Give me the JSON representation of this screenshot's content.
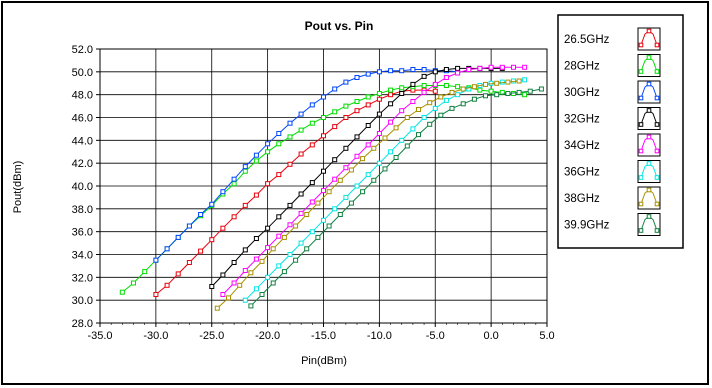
{
  "chart_data": {
    "type": "line",
    "title": "Pout vs. Pin",
    "xlabel": "Pin(dBm)",
    "ylabel": "Pout(dBm)",
    "xlim": [
      -35,
      5
    ],
    "ylim": [
      28,
      52
    ],
    "x_ticks": [
      -35,
      -30,
      -25,
      -20,
      -15,
      -10,
      -5,
      0,
      5
    ],
    "x_tick_labels": [
      "-35.0",
      "-30.0",
      "-25.0",
      "-20.0",
      "-15.0",
      "-10.0",
      "-5.0",
      "0.0",
      "5.0"
    ],
    "y_ticks": [
      28,
      30,
      32,
      34,
      36,
      38,
      40,
      42,
      44,
      46,
      48,
      50,
      52
    ],
    "y_tick_labels": [
      "28.0",
      "30.0",
      "32.0",
      "34.0",
      "36.0",
      "38.0",
      "40.0",
      "42.0",
      "44.0",
      "46.0",
      "48.0",
      "50.0",
      "52.0"
    ],
    "grid": true,
    "legend_position": "right",
    "marker": "square",
    "series": [
      {
        "name": "26.5GHz",
        "color": "#e8000b",
        "x": [
          -30,
          -29,
          -28,
          -27,
          -26,
          -25,
          -24,
          -23,
          -22,
          -21,
          -20,
          -19,
          -18,
          -17,
          -16,
          -15,
          -14,
          -13,
          -12,
          -11,
          -10,
          -9,
          -8,
          -7,
          -6,
          -5
        ],
        "y": [
          30.5,
          31.3,
          32.3,
          33.3,
          34.3,
          35.3,
          36.3,
          37.3,
          38.3,
          39.2,
          40.2,
          41.0,
          41.9,
          42.8,
          43.6,
          44.4,
          45.2,
          46.0,
          46.6,
          47.1,
          47.6,
          48.0,
          48.3,
          48.4,
          48.4,
          48.3
        ]
      },
      {
        "name": "28GHz",
        "color": "#00dd00",
        "x": [
          -33,
          -32,
          -31,
          -30,
          -29,
          -28,
          -27,
          -26,
          -25,
          -24,
          -23,
          -22,
          -21,
          -20,
          -19,
          -18,
          -17,
          -16,
          -15,
          -14,
          -13,
          -12,
          -11,
          -10,
          -9,
          -8,
          -7,
          -6,
          -5,
          -4,
          -3,
          -2,
          -1,
          0,
          1,
          2,
          3
        ],
        "y": [
          30.7,
          31.5,
          32.5,
          33.5,
          34.5,
          35.5,
          36.5,
          37.4,
          38.3,
          39.3,
          40.2,
          41.3,
          42.2,
          43.0,
          43.7,
          44.3,
          44.9,
          45.5,
          46.0,
          46.5,
          47.0,
          47.4,
          47.8,
          48.1,
          48.4,
          48.6,
          48.7,
          48.8,
          48.8,
          48.8,
          48.7,
          48.6,
          48.4,
          48.3,
          48.2,
          48.1,
          48.0
        ]
      },
      {
        "name": "30GHz",
        "color": "#0046ff",
        "x": [
          -30,
          -29,
          -28,
          -27,
          -26,
          -25,
          -24,
          -23,
          -22,
          -21,
          -20,
          -19,
          -18,
          -17,
          -16,
          -15,
          -14,
          -13,
          -12,
          -11,
          -10,
          -9,
          -8,
          -7,
          -6,
          -5,
          -4,
          -3
        ],
        "y": [
          33.5,
          34.5,
          35.5,
          36.5,
          37.5,
          38.4,
          39.5,
          40.6,
          41.7,
          42.7,
          43.7,
          44.6,
          45.5,
          46.3,
          47.1,
          47.8,
          48.5,
          49.1,
          49.5,
          49.8,
          50.0,
          50.1,
          50.1,
          50.2,
          50.2,
          50.1,
          50.1,
          50.0
        ]
      },
      {
        "name": "32GHz",
        "color": "#000000",
        "x": [
          -25,
          -24,
          -23,
          -22,
          -21,
          -20,
          -19,
          -18,
          -17,
          -16,
          -15,
          -14,
          -13,
          -12,
          -11,
          -10,
          -9,
          -8,
          -7,
          -6,
          -5,
          -4,
          -3,
          -2,
          -1,
          0,
          1
        ],
        "y": [
          31.2,
          32.2,
          33.3,
          34.4,
          35.4,
          36.3,
          37.3,
          38.3,
          39.3,
          40.3,
          41.3,
          42.3,
          43.3,
          44.3,
          45.3,
          46.3,
          47.2,
          48.1,
          48.9,
          49.6,
          50.0,
          50.2,
          50.3,
          50.3,
          50.3,
          50.3,
          50.3
        ]
      },
      {
        "name": "34GHz",
        "color": "#ff00ff",
        "x": [
          -24,
          -23,
          -22,
          -21,
          -20,
          -19,
          -18,
          -17,
          -16,
          -15,
          -14,
          -13,
          -12,
          -11,
          -10,
          -9,
          -8,
          -7,
          -6,
          -5,
          -4,
          -3,
          -2,
          -1,
          0,
          1,
          2,
          3
        ],
        "y": [
          30.5,
          31.5,
          32.6,
          33.6,
          34.6,
          35.6,
          36.6,
          37.6,
          38.6,
          39.6,
          40.6,
          41.6,
          42.6,
          43.6,
          44.6,
          45.6,
          46.6,
          47.4,
          48.2,
          48.9,
          49.5,
          49.9,
          50.2,
          50.3,
          50.4,
          50.4,
          50.4,
          50.4
        ]
      },
      {
        "name": "36GHz",
        "color": "#00e5e5",
        "x": [
          -22,
          -21,
          -20,
          -19,
          -18,
          -17,
          -16,
          -15,
          -14,
          -13,
          -12,
          -11,
          -10,
          -9,
          -8,
          -7,
          -6,
          -5,
          -4,
          -3,
          -2,
          -1,
          0,
          1,
          2,
          3
        ],
        "y": [
          30.0,
          31.0,
          32.0,
          33.0,
          34.0,
          35.0,
          36.0,
          37.0,
          38.0,
          39.0,
          40.0,
          41.0,
          42.0,
          43.0,
          44.0,
          45.0,
          46.0,
          46.8,
          47.5,
          48.0,
          48.5,
          48.8,
          49.0,
          49.1,
          49.2,
          49.3
        ]
      },
      {
        "name": "38GHz",
        "color": "#a89000",
        "x": [
          -24.5,
          -23.5,
          -22.5,
          -21.5,
          -20.5,
          -19.5,
          -18.5,
          -17.5,
          -16.5,
          -15.5,
          -14.5,
          -13.5,
          -12.5,
          -11.5,
          -10.5,
          -9.5,
          -8.5,
          -7.5,
          -6.5,
          -5.5,
          -4.5,
          -3.5,
          -2.5,
          -1.5,
          -0.5,
          0.5,
          1.5,
          2.5
        ],
        "y": [
          29.3,
          30.2,
          31.3,
          32.4,
          33.4,
          34.5,
          35.5,
          36.5,
          37.5,
          38.5,
          39.5,
          40.5,
          41.4,
          42.4,
          43.3,
          44.2,
          45.1,
          46.0,
          46.7,
          47.3,
          47.8,
          48.2,
          48.5,
          48.7,
          48.9,
          49.0,
          49.1,
          49.2
        ]
      },
      {
        "name": "39.9GHz",
        "color": "#108040",
        "x": [
          -21.5,
          -20.5,
          -19.5,
          -18.5,
          -17.5,
          -16.5,
          -15.5,
          -14.5,
          -13.5,
          -12.5,
          -11.5,
          -10.5,
          -9.5,
          -8.5,
          -7.5,
          -6.5,
          -5.5,
          -4.5,
          -3.5,
          -2.5,
          -1.5,
          -0.5,
          0.5,
          1.5,
          2.5,
          3.5,
          4.5
        ],
        "y": [
          29.5,
          30.5,
          31.5,
          32.5,
          33.5,
          34.5,
          35.5,
          36.5,
          37.5,
          38.5,
          39.5,
          40.5,
          41.5,
          42.5,
          43.5,
          44.5,
          45.4,
          46.2,
          46.8,
          47.2,
          47.6,
          47.9,
          48.0,
          48.1,
          48.2,
          48.3,
          48.5
        ]
      }
    ]
  }
}
